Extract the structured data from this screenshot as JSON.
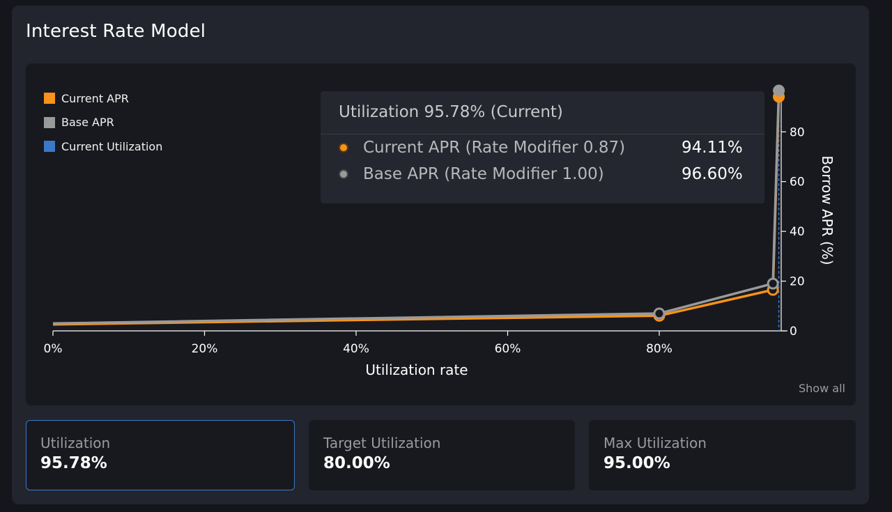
{
  "title": "Interest Rate Model",
  "chart_data": {
    "type": "line",
    "xlabel": "Utilization rate",
    "ylabel": "Borrow APR (%)",
    "xlim": [
      0,
      96
    ],
    "ylim": [
      0,
      96.6
    ],
    "x_ticks": [
      0,
      20,
      40,
      60,
      80
    ],
    "x_tick_labels": [
      "0%",
      "20%",
      "40%",
      "60%",
      "80%"
    ],
    "y_ticks": [
      0,
      20,
      40,
      60,
      80
    ],
    "y_tick_labels": [
      "0",
      "20",
      "40",
      "60",
      "80"
    ],
    "legend_position": "top-left",
    "series": [
      {
        "name": "Current APR",
        "color": "#f7931a",
        "points": [
          [
            0,
            2.6
          ],
          [
            80,
            6.1
          ],
          [
            95,
            16.5
          ],
          [
            95.78,
            94.11
          ]
        ],
        "markers": [
          80,
          95,
          95.78
        ]
      },
      {
        "name": "Base APR",
        "color": "#9a9a9a",
        "points": [
          [
            0,
            3.0
          ],
          [
            80,
            7.0
          ],
          [
            95,
            19.0
          ],
          [
            95.78,
            96.6
          ]
        ],
        "markers": [
          80,
          95,
          95.78
        ]
      }
    ],
    "current_utilization": {
      "name": "Current Utilization",
      "color": "#3a79c9",
      "x": 95.78
    }
  },
  "tooltip": {
    "header": "Utilization 95.78% (Current)",
    "rows": [
      {
        "label": "Current APR (Rate Modifier 0.87)",
        "value": "94.11%",
        "color": "#f7931a"
      },
      {
        "label": "Base APR (Rate Modifier 1.00)",
        "value": "96.60%",
        "color": "#9a9a9a"
      }
    ]
  },
  "show_all": "Show all",
  "stats": [
    {
      "label": "Utilization",
      "value": "95.78%"
    },
    {
      "label": "Target Utilization",
      "value": "80.00%"
    },
    {
      "label": "Max Utilization",
      "value": "95.00%"
    }
  ]
}
